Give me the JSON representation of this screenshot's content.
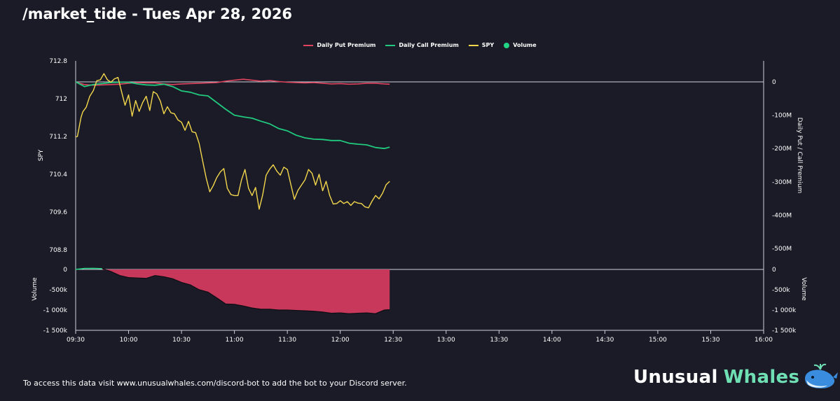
{
  "header": {
    "title": "/market_tide - Tues Apr 28, 2026"
  },
  "footer": {
    "text": "To access this data visit www.unusualwhales.com/discord-bot to add the bot to your Discord server."
  },
  "brand": {
    "word1": "Unusual",
    "word2": "Whales"
  },
  "colors": {
    "background": "#1b1b27",
    "put": "#e0435e",
    "call": "#20c97d",
    "spy": "#f2d64b",
    "volume_dot": "#22d584",
    "volume_fill": "#c7385a",
    "axis": "#d0d0d8",
    "brand_accent": "#6fe0b4"
  },
  "chart_data": {
    "type": "line",
    "legend": [
      {
        "name": "Daily Put Premium",
        "color": "#e0435e",
        "marker": "line"
      },
      {
        "name": "Daily Call Premium",
        "color": "#20c97d",
        "marker": "line"
      },
      {
        "name": "SPY",
        "color": "#f2d64b",
        "marker": "line"
      },
      {
        "name": "Volume",
        "color": "#22d584",
        "marker": "dot"
      }
    ],
    "legend_position": "top-center",
    "x_ticks": [
      "09:30",
      "10:00",
      "10:30",
      "11:00",
      "11:30",
      "12:00",
      "12:30",
      "13:00",
      "13:30",
      "14:00",
      "14:30",
      "15:00",
      "15:30",
      "16:00"
    ],
    "x_range_minutes": [
      0,
      390
    ],
    "left_axis": {
      "label": "SPY",
      "ticks": [
        "712.8",
        "712",
        "711.2",
        "710.4",
        "709.6",
        "708.8"
      ],
      "ylim": [
        708.8,
        712.8
      ]
    },
    "right_axis": {
      "label": "Daily Put / Call Premium",
      "ticks": [
        "0",
        "-100M",
        "-200M",
        "-300M",
        "-400M",
        "-500M"
      ],
      "ylim_millions": [
        -562,
        58
      ]
    },
    "volume_axis": {
      "label": "Volume",
      "ticks": [
        "0",
        "-500k",
        "-1 000k",
        "-1 500k"
      ],
      "ylim_thousands": [
        -1500,
        0
      ]
    },
    "grid": false,
    "series": [
      {
        "name": "SPY",
        "axis": "left",
        "x_minutes": [
          0,
          1,
          3,
          4,
          6,
          8,
          10,
          12,
          14,
          16,
          18,
          20,
          22,
          24,
          26,
          28,
          30,
          32,
          34,
          36,
          38,
          40,
          42,
          44,
          46,
          48,
          50,
          52,
          54,
          56,
          58,
          60,
          62,
          64,
          66,
          68,
          70,
          72,
          74,
          76,
          78,
          80,
          82,
          84,
          86,
          88,
          90,
          92,
          94,
          96,
          98,
          100,
          102,
          104,
          106,
          108,
          110,
          112,
          114,
          116,
          118,
          120,
          122,
          124,
          126,
          128,
          130,
          132,
          134,
          136,
          138,
          140,
          142,
          144,
          146,
          148,
          150,
          152,
          154,
          156,
          158,
          160,
          162,
          164,
          166,
          168,
          170,
          172,
          174,
          176,
          178
        ],
        "values": [
          711.19,
          711.2,
          711.6,
          711.72,
          711.82,
          712.05,
          712.17,
          712.38,
          712.4,
          712.53,
          712.4,
          712.35,
          712.42,
          712.45,
          712.15,
          711.86,
          712.08,
          711.63,
          711.96,
          711.73,
          711.92,
          712.05,
          711.75,
          712.15,
          712.1,
          711.95,
          711.68,
          711.83,
          711.7,
          711.68,
          711.55,
          711.5,
          711.33,
          711.52,
          711.3,
          711.28,
          711.05,
          710.68,
          710.32,
          710.03,
          710.16,
          710.33,
          710.45,
          710.52,
          710.1,
          709.97,
          709.95,
          709.95,
          710.28,
          710.5,
          710.1,
          709.95,
          710.12,
          709.66,
          709.96,
          710.38,
          710.51,
          710.6,
          710.47,
          710.38,
          710.55,
          710.5,
          710.18,
          709.87,
          710.06,
          710.17,
          710.28,
          710.5,
          710.42,
          710.17,
          710.4,
          710.05,
          710.25,
          709.95,
          709.77,
          709.78,
          709.84,
          709.78,
          709.82,
          709.74,
          709.82,
          709.79,
          709.78,
          709.71,
          709.69,
          709.83,
          709.95,
          709.88,
          710.0,
          710.18,
          710.25
        ]
      },
      {
        "name": "Daily Call Premium",
        "axis": "right",
        "unit": "M",
        "x_minutes": [
          0,
          5,
          10,
          15,
          20,
          25,
          30,
          35,
          40,
          45,
          50,
          55,
          60,
          65,
          70,
          75,
          80,
          85,
          90,
          95,
          100,
          105,
          110,
          115,
          120,
          125,
          130,
          135,
          140,
          145,
          150,
          155,
          160,
          165,
          170,
          175,
          178
        ],
        "values": [
          0,
          -14,
          -8,
          -5,
          -2,
          -1,
          -1,
          -6,
          -9,
          -10,
          -7,
          -14,
          -27,
          -31,
          -39,
          -42,
          -62,
          -82,
          -100,
          -105,
          -109,
          -118,
          -126,
          -140,
          -147,
          -160,
          -168,
          -172,
          -173,
          -176,
          -176,
          -184,
          -187,
          -189,
          -197,
          -200,
          -196
        ]
      },
      {
        "name": "Daily Put Premium",
        "axis": "right",
        "unit": "M",
        "x_minutes": [
          0,
          5,
          10,
          15,
          20,
          25,
          30,
          35,
          40,
          45,
          50,
          55,
          60,
          65,
          70,
          75,
          80,
          85,
          90,
          95,
          100,
          105,
          110,
          115,
          120,
          125,
          130,
          135,
          140,
          145,
          150,
          155,
          160,
          165,
          170,
          175,
          178
        ],
        "values": [
          -1,
          -8,
          -10,
          -9,
          -8,
          -7,
          -4,
          -2,
          -3,
          -3,
          -6,
          -8,
          -6,
          -5,
          -4,
          -3,
          -2,
          2,
          5,
          8,
          5,
          2,
          4,
          1,
          -1,
          -2,
          -3,
          -2,
          -4,
          -6,
          -5,
          -7,
          -6,
          -4,
          -4,
          -6,
          -7
        ]
      },
      {
        "name": "Volume",
        "axis": "volume",
        "unit": "k",
        "x_minutes": [
          0,
          5,
          10,
          15,
          20,
          25,
          30,
          35,
          40,
          45,
          50,
          55,
          60,
          65,
          70,
          75,
          80,
          85,
          90,
          95,
          100,
          105,
          110,
          115,
          120,
          125,
          130,
          135,
          140,
          145,
          150,
          155,
          160,
          165,
          170,
          175,
          178
        ],
        "values": [
          0,
          25,
          28,
          20,
          -50,
          -150,
          -200,
          -210,
          -220,
          -150,
          -180,
          -230,
          -320,
          -380,
          -500,
          -560,
          -700,
          -850,
          -860,
          -900,
          -950,
          -980,
          -980,
          -1000,
          -1000,
          -1010,
          -1020,
          -1030,
          -1050,
          -1080,
          -1070,
          -1090,
          -1080,
          -1070,
          -1090,
          -1000,
          -990
        ]
      }
    ]
  }
}
